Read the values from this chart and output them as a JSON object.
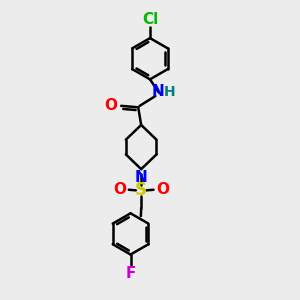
{
  "bg_color": "#ececec",
  "bond_color": "#000000",
  "bond_width": 1.8,
  "atom_colors": {
    "Cl": "#00bb00",
    "F": "#cc00cc",
    "O": "#ff0000",
    "N": "#0000ff",
    "S": "#cccc00",
    "H": "#008080"
  },
  "font_size": 10,
  "fig_size": [
    3.0,
    3.0
  ],
  "dpi": 100
}
